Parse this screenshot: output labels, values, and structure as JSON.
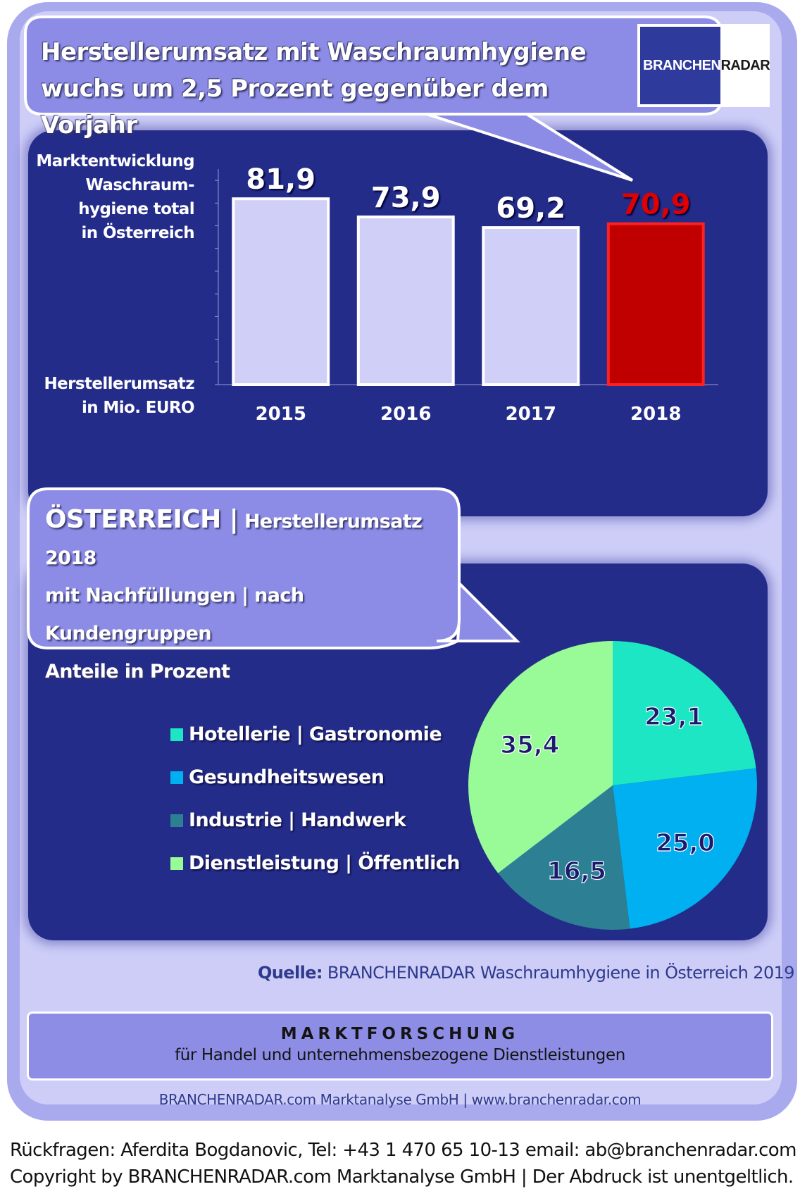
{
  "headline": {
    "line1": "Herstellerumsatz mit  Waschraumhygiene",
    "line2": "wuchs um 2,5 Prozent gegenüber dem Vorjahr"
  },
  "logo": {
    "part1": "BRANCHEN",
    "part2": "RADAR"
  },
  "bar_ylabel_top": [
    "Marktentwicklung",
    "Waschraum-",
    "hygiene total",
    "in Österreich"
  ],
  "bar_ylabel_bottom": [
    "Herstellerumsatz",
    "in Mio. EURO"
  ],
  "pie_title": {
    "country": "ÖSTERREICH |",
    "line1_rest": " Herstellerumsatz  2018",
    "line2": "mit Nachfüllungen | nach Kundengruppen",
    "line3": "Anteile in Prozent"
  },
  "source": {
    "label": "Quelle:",
    "text": " BRANCHENRADAR Waschraumhygiene in Österreich 2019"
  },
  "footer": {
    "title": "MARKTFORSCHUNG",
    "subtitle": "für Handel und unternehmensbezogene Dienstleistungen"
  },
  "company_line": "BRANCHENRADAR.com Marktanalyse GmbH | www.branchenradar.com",
  "contact_line1": "Rückfragen: Aferdita Bogdanovic, Tel: +43 1 470 65 10-13 email: ab@branchenradar.com",
  "contact_line2": "Copyright by BRANCHENRADAR.com  Marktanalyse GmbH | Der Abdruck ist unentgeltlich.",
  "colors": {
    "bar_fill": "#cfcff8",
    "bar_highlight": "#c00000",
    "label_default": "#ffffff",
    "label_highlight": "#e00000"
  },
  "chart_data": [
    {
      "type": "bar",
      "title": "Marktentwicklung Waschraumhygiene total in Österreich",
      "ylabel": "Herstellerumsatz in Mio. EURO",
      "categories": [
        "2015",
        "2016",
        "2017",
        "2018"
      ],
      "values": [
        81.9,
        73.9,
        69.2,
        70.9
      ],
      "value_labels": [
        "81,9",
        "73,9",
        "69,2",
        "70,9"
      ],
      "highlight_index": 3,
      "ylim": [
        0,
        95
      ]
    },
    {
      "type": "pie",
      "title": "ÖSTERREICH | Herstellerumsatz 2018 mit Nachfüllungen | nach Kundengruppen Anteile in Prozent",
      "categories": [
        "Hotellerie | Gastronomie",
        "Gesundheitswesen",
        "Industrie | Handwerk",
        "Dienstleistung | Öffentlich"
      ],
      "values": [
        23.1,
        25.0,
        16.5,
        35.4
      ],
      "value_labels": [
        "23,1",
        "25,0",
        "16,5",
        "35,4"
      ],
      "colors": [
        "#1de6c4",
        "#00b0f0",
        "#2d7f93",
        "#98fb98"
      ],
      "legend": "left"
    }
  ]
}
